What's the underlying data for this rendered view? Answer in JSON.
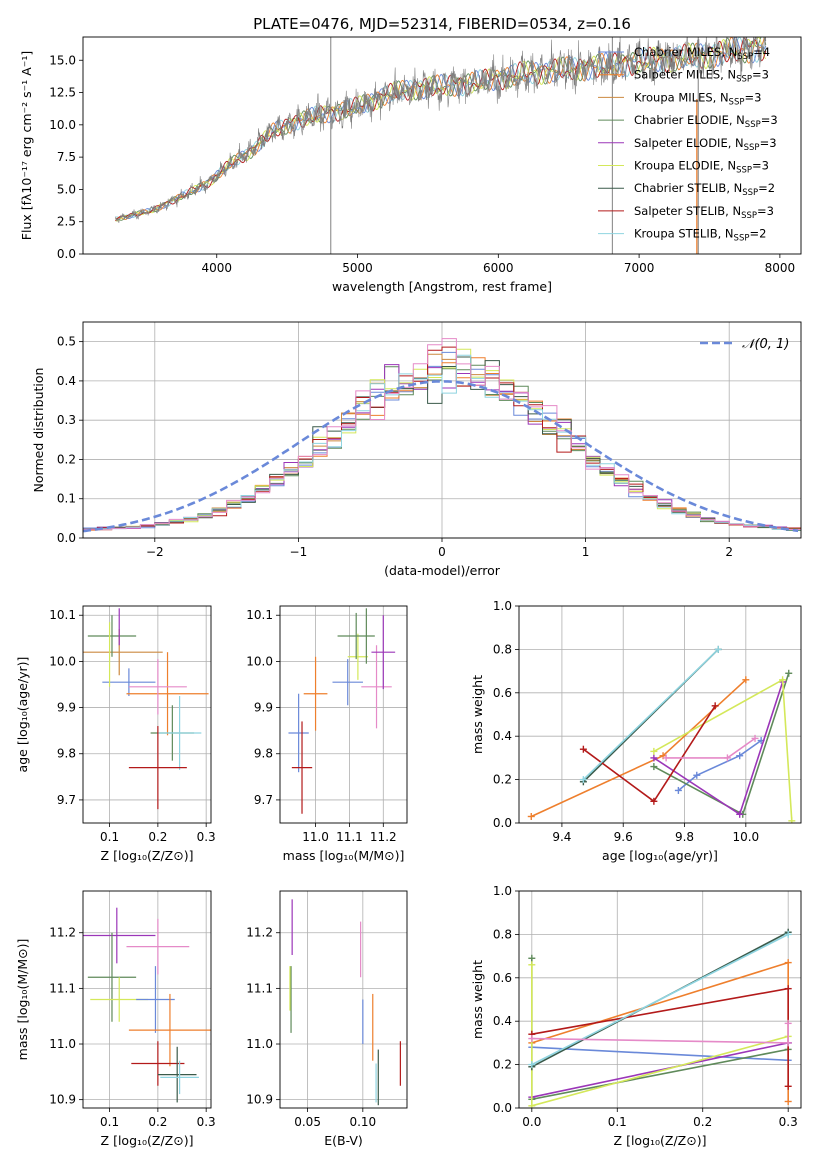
{
  "figure_title": "PLATE=0476, MJD=52314, FIBERID=0534, z=0.16",
  "colors": {
    "c0": "#6a89d9",
    "c1": "#ee7f2d",
    "c2": "#cc8a40",
    "c3": "#5f8a5a",
    "c4": "#9b36b8",
    "c5": "#d4e85a",
    "c6": "#3a5a4a",
    "c7": "#b31a1a",
    "c8": "#8fd4e0",
    "c9": "#e58ac8",
    "data": "#808080",
    "gaussian": "#6a89d9"
  },
  "chart_data": [
    {
      "id": "spectrum",
      "type": "line",
      "title": "PLATE=0476, MJD=52314, FIBERID=0534, z=0.16",
      "xlabel": "wavelength [Angstrom, rest frame]",
      "ylabel": "Flux [fλ10⁻¹⁷ erg cm⁻² s⁻¹ A⁻¹]",
      "xlim": [
        3050,
        8150
      ],
      "ylim": [
        0,
        16.8
      ],
      "xticks": [
        4000,
        5000,
        6000,
        7000,
        8000
      ],
      "yticks": [
        0.0,
        2.5,
        5.0,
        7.5,
        10.0,
        12.5,
        15.0
      ],
      "ytick_labels": [
        "0.0",
        "2.5",
        "5.0",
        "7.5",
        "10.0",
        "12.5",
        "15.0"
      ],
      "legend_position": "right",
      "legend": [
        {
          "label": "Chabrier MILES, N",
          "sub": "SSP",
          "suffix": "=4",
          "color": "c0"
        },
        {
          "label": "Salpeter MILES, N",
          "sub": "SSP",
          "suffix": "=3",
          "color": "c1"
        },
        {
          "label": "Kroupa MILES, N",
          "sub": "SSP",
          "suffix": "=3",
          "color": "c2"
        },
        {
          "label": "Chabrier ELODIE, N",
          "sub": "SSP",
          "suffix": "=3",
          "color": "c3"
        },
        {
          "label": "Salpeter ELODIE, N",
          "sub": "SSP",
          "suffix": "=3",
          "color": "c4"
        },
        {
          "label": "Kroupa ELODIE, N",
          "sub": "SSP",
          "suffix": "=3",
          "color": "c5"
        },
        {
          "label": "Chabrier STELIB, N",
          "sub": "SSP",
          "suffix": "=2",
          "color": "c6"
        },
        {
          "label": "Salpeter STELIB, N",
          "sub": "SSP",
          "suffix": "=3",
          "color": "c7"
        },
        {
          "label": "Kroupa STELIB, N",
          "sub": "SSP",
          "suffix": "=2",
          "color": "c8"
        }
      ],
      "spectrum_anchors": [
        [
          3280,
          2.7
        ],
        [
          3400,
          3.0
        ],
        [
          3550,
          3.4
        ],
        [
          3700,
          4.2
        ],
        [
          3850,
          5.0
        ],
        [
          3950,
          5.6
        ],
        [
          4100,
          7.0
        ],
        [
          4250,
          8.0
        ],
        [
          4400,
          9.5
        ],
        [
          4550,
          10.2
        ],
        [
          4700,
          10.7
        ],
        [
          4850,
          11.0
        ],
        [
          5000,
          11.4
        ],
        [
          5200,
          12.3
        ],
        [
          5400,
          12.8
        ],
        [
          5600,
          13.0
        ],
        [
          5800,
          13.2
        ],
        [
          6000,
          13.6
        ],
        [
          6200,
          14.0
        ],
        [
          6400,
          14.2
        ],
        [
          6600,
          14.4
        ],
        [
          6800,
          14.6
        ],
        [
          7000,
          14.9
        ],
        [
          7200,
          15.1
        ],
        [
          7400,
          15.3
        ],
        [
          7600,
          15.6
        ],
        [
          7800,
          15.9
        ],
        [
          7900,
          16.0
        ]
      ]
    },
    {
      "id": "residuals",
      "type": "histogram",
      "xlabel": "(data-model)/error",
      "ylabel": "Normed distribution",
      "xlim": [
        -2.5,
        2.5
      ],
      "ylim": [
        0,
        0.55
      ],
      "xticks": [
        -2,
        -1,
        0,
        1,
        2
      ],
      "xtick_labels": [
        "−2",
        "−1",
        "0",
        "1",
        "2"
      ],
      "yticks": [
        0.0,
        0.1,
        0.2,
        0.3,
        0.4,
        0.5
      ],
      "ytick_labels": [
        "0.0",
        "0.1",
        "0.2",
        "0.3",
        "0.4",
        "0.5"
      ],
      "bin_width": 0.1,
      "legend": [
        {
          "label": "𝒩(0, 1)",
          "style": "dashed",
          "color": "gaussian"
        }
      ],
      "legend_position": "top-right"
    },
    {
      "id": "age_vs_Z",
      "type": "errorbar",
      "xlabel": "Z [log₁₀(Z/Z⊙)]",
      "ylabel": "age  [log₁₀(age/yr)]",
      "xlim": [
        0.045,
        0.31
      ],
      "ylim": [
        9.65,
        10.12
      ],
      "xticks": [
        0.1,
        0.2,
        0.3
      ],
      "xtick_labels": [
        "0.1",
        "0.2",
        "0.3"
      ],
      "yticks": [
        9.7,
        9.8,
        9.9,
        10.0,
        10.1
      ],
      "ytick_labels": [
        "9.7",
        "9.8",
        "9.9",
        "10.0",
        "10.1"
      ],
      "points": [
        {
          "x": 0.14,
          "y": 9.955,
          "xerr": 0.055,
          "yerr": 0.03,
          "color": "c0"
        },
        {
          "x": 0.12,
          "y": 10.02,
          "xerr": 0.09,
          "yerr": 0.05,
          "color": "c2"
        },
        {
          "x": 0.105,
          "y": 10.055,
          "xerr": 0.05,
          "yerr": 0.045,
          "color": "c3"
        },
        {
          "x": 0.12,
          "y": 10.075,
          "xerr": 0.0,
          "yerr": 0.04,
          "color": "c4"
        },
        {
          "x": 0.1,
          "y": 10.015,
          "xerr": 0.0,
          "yerr": 0.07,
          "color": "c5"
        },
        {
          "x": 0.22,
          "y": 9.93,
          "xerr": 0.085,
          "yerr": 0.09,
          "color": "c1"
        },
        {
          "x": 0.2,
          "y": 9.945,
          "xerr": 0.06,
          "yerr": 0.06,
          "color": "c9"
        },
        {
          "x": 0.23,
          "y": 9.845,
          "xerr": 0.045,
          "yerr": 0.06,
          "color": "c3"
        },
        {
          "x": 0.245,
          "y": 9.845,
          "xerr": 0.045,
          "yerr": 0.08,
          "color": "c8"
        },
        {
          "x": 0.2,
          "y": 9.77,
          "xerr": 0.06,
          "yerr": 0.09,
          "color": "c7"
        }
      ]
    },
    {
      "id": "age_vs_mass",
      "type": "errorbar",
      "xlabel": "mass [log₁₀(M/M⊙)]",
      "ylabel": "",
      "xlim": [
        10.895,
        11.27
      ],
      "ylim": [
        9.65,
        10.12
      ],
      "xticks": [
        11.0,
        11.1,
        11.2
      ],
      "xtick_labels": [
        "11.0",
        "11.1",
        "11.2"
      ],
      "yticks": [
        9.7,
        9.8,
        9.9,
        10.0,
        10.1
      ],
      "ytick_labels": [
        "9.7",
        "9.8",
        "9.9",
        "10.0",
        "10.1"
      ],
      "points": [
        {
          "x": 10.95,
          "y": 9.845,
          "xerr": 0.03,
          "yerr": 0.085,
          "color": "c0"
        },
        {
          "x": 10.96,
          "y": 9.77,
          "xerr": 0.03,
          "yerr": 0.1,
          "color": "c7"
        },
        {
          "x": 11.0,
          "y": 9.93,
          "xerr": 0.035,
          "yerr": 0.08,
          "color": "c1"
        },
        {
          "x": 11.095,
          "y": 9.955,
          "xerr": 0.045,
          "yerr": 0.05,
          "color": "c0"
        },
        {
          "x": 11.125,
          "y": 10.01,
          "xerr": 0.03,
          "yerr": 0.05,
          "color": "c5"
        },
        {
          "x": 11.12,
          "y": 10.055,
          "xerr": 0.055,
          "yerr": 0.05,
          "color": "c3"
        },
        {
          "x": 11.18,
          "y": 9.945,
          "xerr": 0.045,
          "yerr": 0.09,
          "color": "c9"
        },
        {
          "x": 11.2,
          "y": 10.02,
          "xerr": 0.035,
          "yerr": 0.08,
          "color": "c4"
        },
        {
          "x": 11.15,
          "y": 10.055,
          "xerr": 0.0,
          "yerr": 0.06,
          "color": "c3"
        }
      ]
    },
    {
      "id": "weight_vs_age",
      "type": "line",
      "xlabel": "age  [log₁₀(age/yr)]",
      "ylabel": "mass weight",
      "xlim": [
        9.26,
        10.18
      ],
      "ylim": [
        0,
        1.0
      ],
      "xticks": [
        9.4,
        9.6,
        9.8,
        10.0
      ],
      "xtick_labels": [
        "9.4",
        "9.6",
        "9.8",
        "10.0"
      ],
      "yticks": [
        0.0,
        0.2,
        0.4,
        0.6,
        0.8,
        1.0
      ],
      "ytick_labels": [
        "0.0",
        "0.2",
        "0.4",
        "0.6",
        "0.8",
        "1.0"
      ],
      "series": [
        {
          "color": "c0",
          "x": [
            9.78,
            9.84,
            9.98,
            10.05
          ],
          "y": [
            0.15,
            0.22,
            0.31,
            0.38
          ]
        },
        {
          "color": "c1",
          "x": [
            9.3,
            9.73,
            10.0
          ],
          "y": [
            0.03,
            0.31,
            0.66
          ]
        },
        {
          "color": "c3",
          "x": [
            9.7,
            9.99,
            10.14
          ],
          "y": [
            0.26,
            0.04,
            0.69
          ]
        },
        {
          "color": "c4",
          "x": [
            9.7,
            9.98,
            10.12
          ],
          "y": [
            0.3,
            0.04,
            0.65
          ]
        },
        {
          "color": "c5",
          "x": [
            9.7,
            10.12,
            10.15
          ],
          "y": [
            0.33,
            0.66,
            0.01
          ]
        },
        {
          "color": "c6",
          "x": [
            9.47,
            9.91
          ],
          "y": [
            0.19,
            0.8
          ]
        },
        {
          "color": "c7",
          "x": [
            9.47,
            9.7,
            9.9
          ],
          "y": [
            0.34,
            0.1,
            0.54
          ]
        },
        {
          "color": "c8",
          "x": [
            9.47,
            9.91
          ],
          "y": [
            0.2,
            0.8
          ]
        },
        {
          "color": "c9",
          "x": [
            9.74,
            9.94,
            10.03
          ],
          "y": [
            0.3,
            0.3,
            0.39
          ]
        }
      ]
    },
    {
      "id": "mass_vs_Z",
      "type": "errorbar",
      "xlabel": "Z [log₁₀(Z/Z⊙)]",
      "ylabel": "mass [log₁₀(M/M⊙)]",
      "xlim": [
        0.045,
        0.31
      ],
      "ylim": [
        10.885,
        11.275
      ],
      "xticks": [
        0.1,
        0.2,
        0.3
      ],
      "xtick_labels": [
        "0.1",
        "0.2",
        "0.3"
      ],
      "yticks": [
        10.9,
        11.0,
        11.1,
        11.2
      ],
      "ytick_labels": [
        "10.9",
        "11.0",
        "11.1",
        "11.2"
      ],
      "points": [
        {
          "x": 0.115,
          "y": 11.195,
          "xerr": 0.08,
          "yerr": 0.05,
          "color": "c4"
        },
        {
          "x": 0.2,
          "y": 11.175,
          "xerr": 0.065,
          "yerr": 0.05,
          "color": "c9"
        },
        {
          "x": 0.105,
          "y": 11.12,
          "xerr": 0.05,
          "yerr": 0.08,
          "color": "c3"
        },
        {
          "x": 0.12,
          "y": 11.08,
          "xerr": 0.06,
          "yerr": 0.04,
          "color": "c5"
        },
        {
          "x": 0.195,
          "y": 11.08,
          "xerr": 0.04,
          "yerr": 0.06,
          "color": "c0"
        },
        {
          "x": 0.225,
          "y": 11.025,
          "xerr": 0.085,
          "yerr": 0.065,
          "color": "c1"
        },
        {
          "x": 0.2,
          "y": 10.965,
          "xerr": 0.055,
          "yerr": 0.04,
          "color": "c7"
        },
        {
          "x": 0.24,
          "y": 10.945,
          "xerr": 0.04,
          "yerr": 0.05,
          "color": "c6"
        },
        {
          "x": 0.245,
          "y": 10.94,
          "xerr": 0.04,
          "yerr": 0.03,
          "color": "c8"
        }
      ]
    },
    {
      "id": "mass_vs_ebv",
      "type": "errorbar",
      "xlabel": "E(B-V)",
      "ylabel": "",
      "xlim": [
        0.025,
        0.14
      ],
      "ylim": [
        10.885,
        11.275
      ],
      "xticks": [
        0.05,
        0.1
      ],
      "xtick_labels": [
        "0.05",
        "0.10"
      ],
      "yticks": [
        10.9,
        11.0,
        11.1,
        11.2
      ],
      "ytick_labels": [
        "10.9",
        "11.0",
        "11.1",
        "11.2"
      ],
      "points": [
        {
          "x": 0.036,
          "y": 11.21,
          "xerr": 0.0,
          "yerr": 0.05,
          "color": "c4"
        },
        {
          "x": 0.035,
          "y": 11.08,
          "xerr": 0.0,
          "yerr": 0.06,
          "color": "c3"
        },
        {
          "x": 0.034,
          "y": 11.1,
          "xerr": 0.0,
          "yerr": 0.04,
          "color": "c5"
        },
        {
          "x": 0.098,
          "y": 11.17,
          "xerr": 0.0,
          "yerr": 0.05,
          "color": "c9"
        },
        {
          "x": 0.1,
          "y": 11.04,
          "xerr": 0.0,
          "yerr": 0.04,
          "color": "c0"
        },
        {
          "x": 0.109,
          "y": 11.03,
          "xerr": 0.0,
          "yerr": 0.06,
          "color": "c1"
        },
        {
          "x": 0.112,
          "y": 10.93,
          "xerr": 0.0,
          "yerr": 0.035,
          "color": "c8"
        },
        {
          "x": 0.114,
          "y": 10.94,
          "xerr": 0.0,
          "yerr": 0.05,
          "color": "c6"
        },
        {
          "x": 0.134,
          "y": 10.965,
          "xerr": 0.0,
          "yerr": 0.04,
          "color": "c7"
        }
      ]
    },
    {
      "id": "weight_vs_Z",
      "type": "line",
      "xlabel": "Z [log₁₀(Z/Z⊙)]",
      "ylabel": "mass weight",
      "xlim": [
        -0.015,
        0.315
      ],
      "ylim": [
        0,
        1.0
      ],
      "xticks": [
        0.0,
        0.1,
        0.2,
        0.3
      ],
      "xtick_labels": [
        "0.0",
        "0.1",
        "0.2",
        "0.3"
      ],
      "yticks": [
        0.0,
        0.2,
        0.4,
        0.6,
        0.8,
        1.0
      ],
      "ytick_labels": [
        "0.0",
        "0.2",
        "0.4",
        "0.6",
        "0.8",
        "1.0"
      ],
      "series": [
        {
          "color": "c0",
          "x": [
            0.0,
            0.3,
            0.3
          ],
          "y": [
            0.28,
            0.22,
            0.3
          ]
        },
        {
          "color": "c1",
          "x": [
            0.0,
            0.3,
            0.3
          ],
          "y": [
            0.3,
            0.67,
            0.03
          ]
        },
        {
          "color": "c3",
          "x": [
            0.0,
            0.0,
            0.3
          ],
          "y": [
            0.69,
            0.04,
            0.27
          ]
        },
        {
          "color": "c4",
          "x": [
            0.0,
            0.3,
            0.3
          ],
          "y": [
            0.05,
            0.3,
            0.3
          ]
        },
        {
          "color": "c5",
          "x": [
            0.0,
            0.0,
            0.3
          ],
          "y": [
            0.66,
            0.01,
            0.33
          ]
        },
        {
          "color": "c6",
          "x": [
            0.0,
            0.3
          ],
          "y": [
            0.19,
            0.81
          ]
        },
        {
          "color": "c7",
          "x": [
            0.0,
            0.3,
            0.3
          ],
          "y": [
            0.34,
            0.55,
            0.1
          ]
        },
        {
          "color": "c8",
          "x": [
            0.0,
            0.3
          ],
          "y": [
            0.2,
            0.8
          ]
        },
        {
          "color": "c9",
          "x": [
            0.0,
            0.3,
            0.3
          ],
          "y": [
            0.32,
            0.3,
            0.39
          ]
        }
      ]
    }
  ]
}
